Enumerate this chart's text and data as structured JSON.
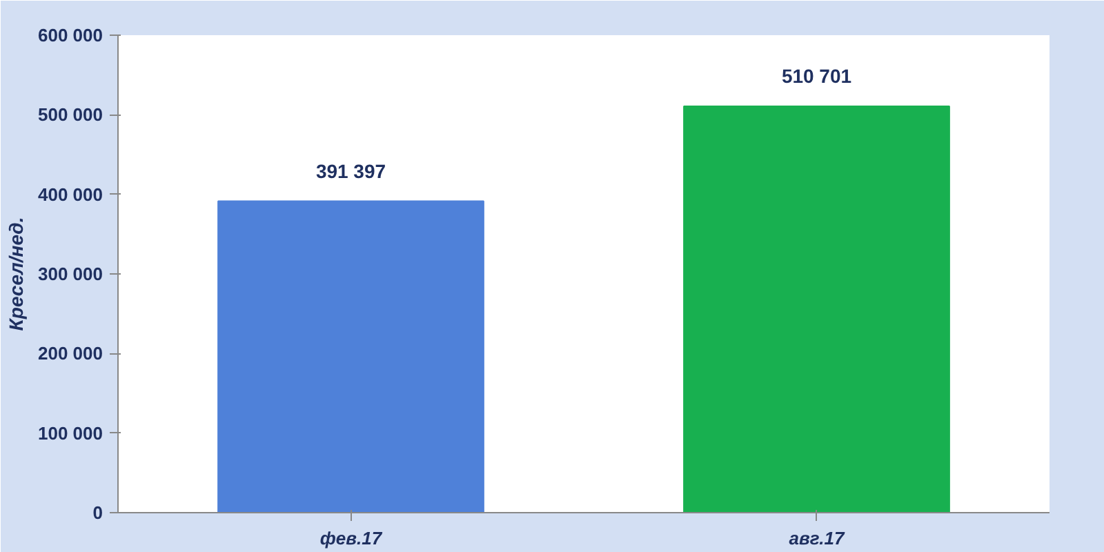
{
  "chart_data": {
    "type": "bar",
    "ylabel": "Кресел/нед.",
    "categories": [
      "фев.17",
      "авг.17"
    ],
    "values": [
      391397,
      510701
    ],
    "colors": [
      "#4f81d9",
      "#18b050"
    ],
    "value_labels": [
      "391 397",
      "510 701"
    ],
    "ylim": [
      0,
      600000
    ],
    "yticks": [
      {
        "value": 0,
        "label": "0"
      },
      {
        "value": 100000,
        "label": "100 000"
      },
      {
        "value": 200000,
        "label": "200 000"
      },
      {
        "value": 300000,
        "label": "300 000"
      },
      {
        "value": 400000,
        "label": "400 000"
      },
      {
        "value": 500000,
        "label": "500 000"
      },
      {
        "value": 600000,
        "label": "600 000"
      }
    ],
    "grid": false
  }
}
